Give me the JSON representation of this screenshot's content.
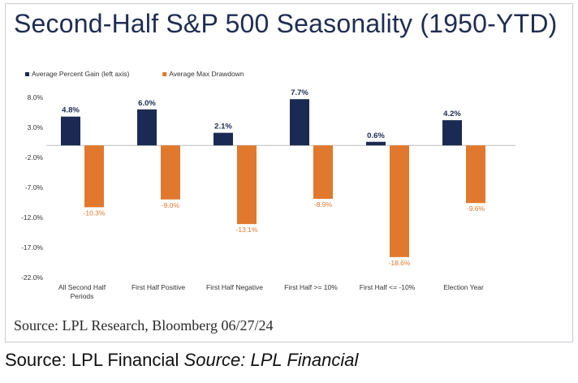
{
  "chart_data": {
    "type": "bar",
    "title": "Second-Half S&P 500 Seasonality (1950-YTD)",
    "source": "Source: LPL Research, Bloomberg 06/27/24",
    "categories": [
      [
        "All Second Half",
        "Periods"
      ],
      [
        "First Half Positive"
      ],
      [
        "First Half Negative"
      ],
      [
        "First Half >= 10%"
      ],
      [
        "First Half <= -10%"
      ],
      [
        "Election Year"
      ]
    ],
    "series": [
      {
        "name": "Average Percent Gain (left axis)",
        "color": "#1b2a52",
        "values": [
          4.8,
          6.0,
          2.1,
          7.7,
          0.6,
          4.2
        ],
        "labels": [
          "4.8%",
          "6.0%",
          "2.1%",
          "7.7%",
          "0.6%",
          "4.2%"
        ]
      },
      {
        "name": "Average Max Drawdown",
        "color": "#e0792e",
        "values": [
          -10.3,
          -9.0,
          -13.1,
          -8.9,
          -18.6,
          -9.6
        ],
        "labels": [
          "-10.3%",
          "-9.0%",
          "-13.1%",
          "-8.9%",
          "-18.6%",
          "-9.6%"
        ]
      }
    ],
    "yticks": [
      8.0,
      3.0,
      -2.0,
      -7.0,
      -12.0,
      -17.0,
      -22.0
    ],
    "ytick_labels": [
      "8.0%",
      "3.0%",
      "-2.0%",
      "-7.0%",
      "-12.0%",
      "-17.0%",
      "-22.0%"
    ],
    "ylim": [
      -22,
      8
    ],
    "grid": false,
    "legend_position": "top-left"
  },
  "caption": {
    "plain": "Source: LPL Financial",
    "italic": "Source: LPL Financial"
  }
}
